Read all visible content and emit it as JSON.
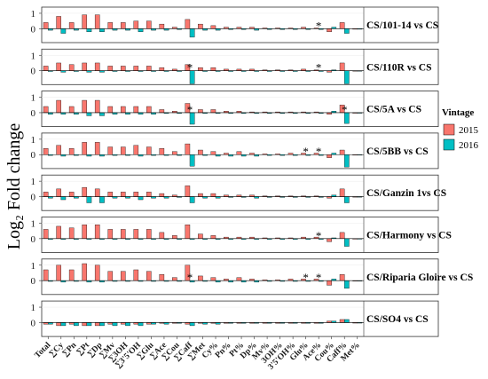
{
  "chart_data": {
    "type": "bar",
    "ylabel": "Log₂ Fold change",
    "yticks": [
      0,
      1
    ],
    "ylim": [
      -0.9,
      1.4
    ],
    "categories": [
      "Total",
      "∑Cy",
      "∑Pn",
      "∑Pt",
      "∑Dp",
      "∑Mv",
      "∑3OH",
      "∑3'5'OH",
      "∑Glu",
      "∑Ace",
      "∑Cou",
      "∑Caff",
      "∑Met",
      "Cy%",
      "Pn%",
      "Pt%",
      "Dp%",
      "Mv%",
      "3OH%",
      "3'5'OH%",
      "Glu%",
      "Ace%",
      "Cou%",
      "Caff%",
      "Met%"
    ],
    "legend": {
      "title": "Vintage",
      "position": "right",
      "entries": [
        {
          "label": "2015",
          "color": "#F8766D"
        },
        {
          "label": "2016",
          "color": "#00BFC4"
        }
      ]
    },
    "panels": [
      {
        "label": "CS/101-14 vs CS",
        "s2015": [
          0.4,
          0.8,
          0.4,
          0.9,
          0.9,
          0.4,
          0.4,
          0.5,
          0.5,
          0.3,
          0.1,
          0.6,
          0.3,
          0.2,
          0.1,
          0.1,
          0.1,
          0.05,
          0.05,
          0.05,
          0.1,
          0.05,
          -0.2,
          0.4,
          0.0
        ],
        "s2016": [
          -0.1,
          -0.3,
          -0.1,
          -0.2,
          -0.2,
          -0.1,
          -0.1,
          -0.2,
          -0.1,
          -0.1,
          -0.05,
          -0.55,
          -0.1,
          -0.1,
          -0.05,
          -0.05,
          -0.1,
          -0.05,
          -0.05,
          -0.05,
          -0.05,
          -0.05,
          0.1,
          -0.3,
          0.0
        ],
        "stars": [
          21
        ]
      },
      {
        "label": "CS/110R vs CS",
        "s2015": [
          0.3,
          0.5,
          0.4,
          0.5,
          0.5,
          0.3,
          0.3,
          0.3,
          0.3,
          0.2,
          0.1,
          0.4,
          0.2,
          0.2,
          0.1,
          0.1,
          0.1,
          0.05,
          0.05,
          0.05,
          0.1,
          0.05,
          -0.1,
          0.5,
          0.0
        ],
        "s2016": [
          -0.05,
          -0.1,
          -0.05,
          -0.1,
          -0.1,
          -0.05,
          -0.05,
          -0.05,
          -0.05,
          -0.05,
          -0.05,
          -0.85,
          -0.05,
          -0.05,
          -0.05,
          -0.05,
          -0.05,
          -0.05,
          -0.05,
          -0.05,
          -0.05,
          -0.05,
          0.05,
          -0.85,
          0.0
        ],
        "stars": [
          11,
          21
        ]
      },
      {
        "label": "CS/5A vs CS",
        "s2015": [
          0.4,
          0.8,
          0.4,
          0.8,
          0.8,
          0.4,
          0.4,
          0.4,
          0.4,
          0.2,
          0.1,
          0.6,
          0.2,
          0.2,
          0.1,
          0.1,
          0.05,
          0.05,
          0.05,
          0.05,
          0.05,
          0.05,
          -0.1,
          0.5,
          0.0
        ],
        "s2016": [
          -0.1,
          -0.1,
          -0.1,
          -0.2,
          -0.2,
          -0.1,
          -0.1,
          -0.1,
          -0.1,
          -0.05,
          -0.05,
          -0.75,
          -0.05,
          -0.05,
          -0.05,
          -0.05,
          -0.05,
          -0.05,
          -0.05,
          -0.05,
          -0.05,
          -0.05,
          0.1,
          -0.7,
          0.0
        ],
        "stars": [
          11,
          23
        ]
      },
      {
        "label": "CS/5BB vs CS",
        "s2015": [
          0.4,
          0.6,
          0.4,
          0.8,
          0.8,
          0.5,
          0.5,
          0.6,
          0.5,
          0.4,
          0.2,
          0.7,
          0.3,
          0.2,
          0.1,
          0.2,
          0.1,
          0.05,
          0.05,
          0.1,
          0.1,
          0.1,
          -0.2,
          0.3,
          0.0
        ],
        "s2016": [
          -0.05,
          -0.1,
          -0.05,
          -0.1,
          -0.1,
          -0.05,
          -0.05,
          -0.1,
          -0.05,
          -0.05,
          -0.05,
          -0.75,
          -0.05,
          -0.1,
          -0.1,
          -0.1,
          -0.1,
          -0.05,
          -0.05,
          -0.05,
          -0.05,
          -0.05,
          0.1,
          -0.8,
          0.0
        ],
        "stars": [
          20,
          21
        ]
      },
      {
        "label": "CS/Ganzin 1vs CS",
        "s2015": [
          0.3,
          0.5,
          0.3,
          0.6,
          0.5,
          0.3,
          0.3,
          0.3,
          0.3,
          0.2,
          0.1,
          0.7,
          0.2,
          0.2,
          0.1,
          0.1,
          0.1,
          0.05,
          0.05,
          0.05,
          0.05,
          0.05,
          -0.1,
          0.5,
          0.0
        ],
        "s2016": [
          -0.1,
          -0.2,
          -0.1,
          -0.4,
          -0.4,
          -0.1,
          -0.1,
          -0.2,
          -0.1,
          -0.1,
          -0.05,
          -0.4,
          -0.1,
          -0.1,
          -0.05,
          -0.05,
          -0.1,
          -0.05,
          -0.05,
          -0.05,
          -0.05,
          -0.05,
          0.1,
          -0.4,
          0.0
        ],
        "stars": []
      },
      {
        "label": "CS/Harmony vs CS",
        "s2015": [
          0.6,
          0.8,
          0.7,
          0.9,
          0.9,
          0.6,
          0.6,
          0.6,
          0.6,
          0.4,
          0.2,
          0.9,
          0.3,
          0.2,
          0.1,
          0.1,
          0.1,
          0.05,
          0.05,
          0.05,
          0.1,
          0.1,
          -0.2,
          0.4,
          0.0
        ],
        "s2016": [
          -0.05,
          -0.05,
          -0.05,
          -0.05,
          -0.05,
          -0.05,
          -0.05,
          -0.05,
          -0.05,
          -0.05,
          -0.05,
          -0.05,
          -0.05,
          -0.05,
          -0.05,
          -0.05,
          -0.05,
          -0.05,
          -0.05,
          -0.05,
          -0.05,
          -0.05,
          0.05,
          -0.5,
          0.0
        ],
        "stars": [
          21
        ]
      },
      {
        "label": "CS/Riparia Gloire vs CS",
        "s2015": [
          0.7,
          1.0,
          0.7,
          1.1,
          1.0,
          0.6,
          0.6,
          0.7,
          0.6,
          0.4,
          0.2,
          1.0,
          0.3,
          0.2,
          0.1,
          0.2,
          0.1,
          0.05,
          0.05,
          0.1,
          0.1,
          0.1,
          -0.3,
          0.4,
          0.0
        ],
        "s2016": [
          -0.05,
          -0.1,
          -0.05,
          -0.1,
          -0.1,
          -0.05,
          -0.05,
          -0.05,
          -0.05,
          -0.05,
          -0.05,
          -0.1,
          -0.05,
          -0.1,
          -0.1,
          -0.1,
          -0.1,
          -0.05,
          -0.05,
          -0.05,
          -0.05,
          -0.05,
          0.1,
          -0.5,
          0.0
        ],
        "stars": [
          11,
          20,
          21
        ]
      },
      {
        "label": "CS/SO4 vs CS",
        "s2015": [
          -0.1,
          -0.2,
          -0.1,
          -0.2,
          -0.2,
          -0.1,
          -0.1,
          -0.1,
          -0.1,
          -0.05,
          -0.05,
          -0.1,
          -0.05,
          -0.05,
          -0.05,
          -0.05,
          -0.05,
          -0.05,
          -0.05,
          -0.05,
          -0.05,
          -0.05,
          0.1,
          0.2,
          0.0
        ],
        "s2016": [
          -0.1,
          -0.2,
          -0.2,
          -0.2,
          -0.2,
          -0.2,
          -0.2,
          -0.2,
          -0.1,
          -0.1,
          -0.05,
          -0.2,
          -0.1,
          -0.1,
          -0.05,
          -0.05,
          -0.05,
          -0.05,
          -0.05,
          -0.05,
          -0.05,
          -0.05,
          0.1,
          0.2,
          0.0
        ],
        "stars": []
      }
    ]
  }
}
